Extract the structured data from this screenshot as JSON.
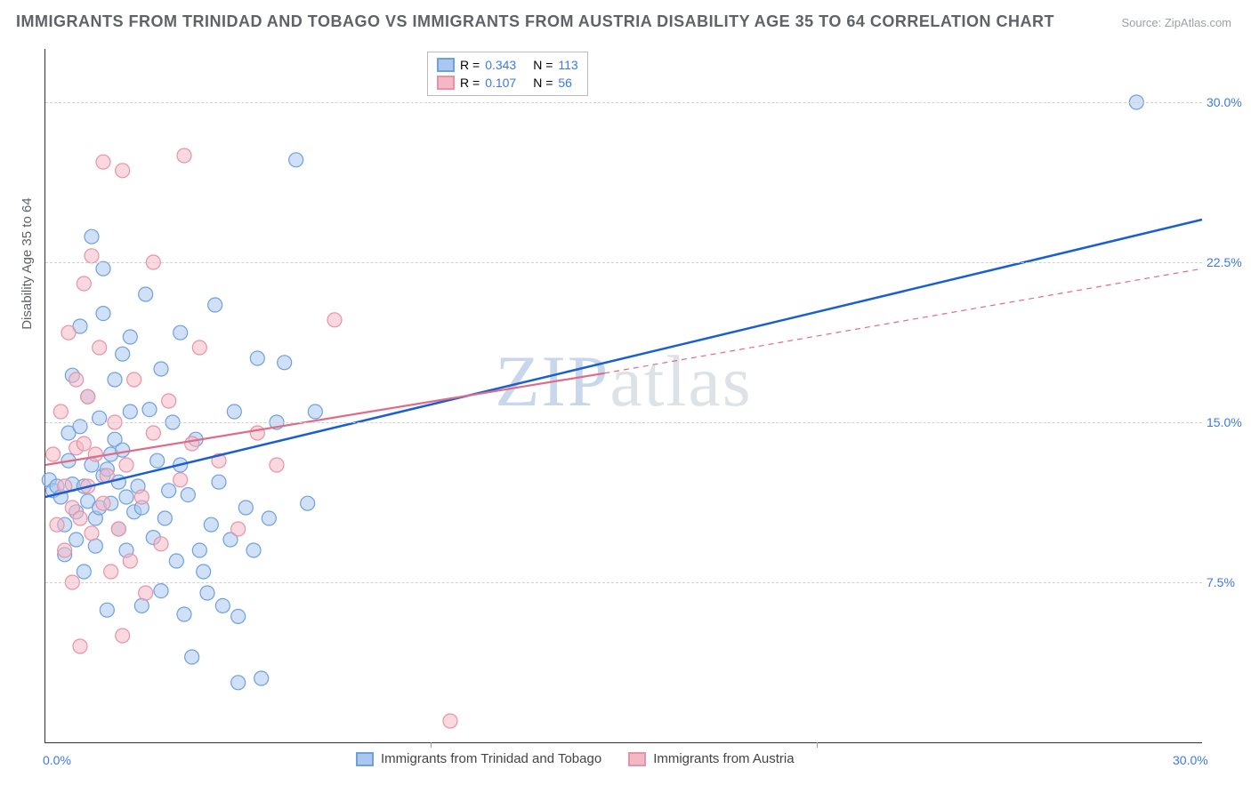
{
  "title": "IMMIGRANTS FROM TRINIDAD AND TOBAGO VS IMMIGRANTS FROM AUSTRIA DISABILITY AGE 35 TO 64 CORRELATION CHART",
  "source": "Source: ZipAtlas.com",
  "ylabel": "Disability Age 35 to 64",
  "watermark_a": "ZIP",
  "watermark_b": "atlas",
  "chart": {
    "type": "scatter",
    "xlim": [
      0,
      30
    ],
    "ylim": [
      0,
      32.5
    ],
    "ytick_labels": [
      "7.5%",
      "15.0%",
      "22.5%",
      "30.0%"
    ],
    "ytick_values": [
      7.5,
      15.0,
      22.5,
      30.0
    ],
    "xmin_label": "0.0%",
    "xmax_label": "30.0%",
    "grid_color": "#d0d0d0",
    "background_color": "#ffffff",
    "marker_radius": 8,
    "marker_opacity": 0.55,
    "series": [
      {
        "name": "Immigrants from Trinidad and Tobago",
        "color_fill": "#aac7ef",
        "color_stroke": "#6fa0de",
        "line_color": "#1a5fd0",
        "line_width": 2.5,
        "trend": {
          "x1": 0,
          "y1": 11.5,
          "x2": 30,
          "y2": 24.5,
          "dash": false
        },
        "R": "0.343",
        "N": "113",
        "points": [
          [
            0.1,
            12.3
          ],
          [
            0.2,
            11.8
          ],
          [
            0.3,
            12.0
          ],
          [
            0.4,
            11.5
          ],
          [
            0.5,
            8.8
          ],
          [
            0.5,
            10.2
          ],
          [
            0.6,
            13.2
          ],
          [
            0.6,
            14.5
          ],
          [
            0.7,
            12.1
          ],
          [
            0.7,
            17.2
          ],
          [
            0.8,
            9.5
          ],
          [
            0.8,
            10.8
          ],
          [
            0.9,
            14.8
          ],
          [
            0.9,
            19.5
          ],
          [
            1.0,
            12.0
          ],
          [
            1.0,
            8.0
          ],
          [
            1.1,
            11.3
          ],
          [
            1.1,
            16.2
          ],
          [
            1.2,
            13.0
          ],
          [
            1.2,
            23.7
          ],
          [
            1.3,
            9.2
          ],
          [
            1.3,
            10.5
          ],
          [
            1.4,
            11.0
          ],
          [
            1.4,
            15.2
          ],
          [
            1.5,
            12.5
          ],
          [
            1.5,
            20.1
          ],
          [
            1.6,
            12.8
          ],
          [
            1.6,
            6.2
          ],
          [
            1.7,
            11.2
          ],
          [
            1.7,
            13.5
          ],
          [
            1.8,
            14.2
          ],
          [
            1.8,
            17.0
          ],
          [
            1.9,
            12.2
          ],
          [
            1.9,
            10.0
          ],
          [
            2.0,
            13.7
          ],
          [
            2.0,
            18.2
          ],
          [
            2.1,
            11.5
          ],
          [
            2.1,
            9.0
          ],
          [
            2.2,
            15.5
          ],
          [
            2.2,
            19.0
          ],
          [
            2.3,
            10.8
          ],
          [
            2.4,
            12.0
          ],
          [
            2.5,
            6.4
          ],
          [
            2.5,
            11.0
          ],
          [
            2.7,
            15.6
          ],
          [
            2.8,
            9.6
          ],
          [
            2.9,
            13.2
          ],
          [
            3.0,
            17.5
          ],
          [
            3.0,
            7.1
          ],
          [
            3.1,
            10.5
          ],
          [
            3.2,
            11.8
          ],
          [
            3.3,
            15.0
          ],
          [
            3.4,
            8.5
          ],
          [
            3.5,
            13.0
          ],
          [
            3.6,
            6.0
          ],
          [
            3.7,
            11.6
          ],
          [
            3.8,
            4.0
          ],
          [
            3.9,
            14.2
          ],
          [
            4.0,
            9.0
          ],
          [
            4.1,
            8.0
          ],
          [
            4.2,
            7.0
          ],
          [
            4.3,
            10.2
          ],
          [
            4.5,
            12.2
          ],
          [
            4.6,
            6.4
          ],
          [
            4.8,
            9.5
          ],
          [
            5.0,
            2.8
          ],
          [
            5.0,
            5.9
          ],
          [
            5.2,
            11.0
          ],
          [
            5.4,
            9.0
          ],
          [
            5.6,
            3.0
          ],
          [
            5.8,
            10.5
          ],
          [
            6.0,
            15.0
          ],
          [
            6.2,
            17.8
          ],
          [
            6.5,
            27.3
          ],
          [
            4.9,
            15.5
          ],
          [
            5.5,
            18.0
          ],
          [
            4.4,
            20.5
          ],
          [
            3.5,
            19.2
          ],
          [
            2.6,
            21.0
          ],
          [
            1.5,
            22.2
          ],
          [
            6.8,
            11.2
          ],
          [
            7.0,
            15.5
          ],
          [
            28.3,
            30.0
          ]
        ]
      },
      {
        "name": "Immigrants from Austria",
        "color_fill": "#f4b8c4",
        "color_stroke": "#e793a5",
        "line_color": "#e06b87",
        "line_width": 2.2,
        "trend": {
          "x1": 0,
          "y1": 13.0,
          "x2": 14.5,
          "y2": 17.3,
          "dash": false
        },
        "trend_ext": {
          "x1": 14.5,
          "y1": 17.3,
          "x2": 30,
          "y2": 22.2,
          "dash": true
        },
        "R": "0.107",
        "N": "56",
        "points": [
          [
            0.2,
            13.5
          ],
          [
            0.3,
            10.2
          ],
          [
            0.4,
            15.5
          ],
          [
            0.5,
            9.0
          ],
          [
            0.5,
            12.0
          ],
          [
            0.6,
            19.2
          ],
          [
            0.7,
            7.5
          ],
          [
            0.7,
            11.0
          ],
          [
            0.8,
            13.8
          ],
          [
            0.8,
            17.0
          ],
          [
            0.9,
            10.5
          ],
          [
            0.9,
            4.5
          ],
          [
            1.0,
            14.0
          ],
          [
            1.0,
            21.5
          ],
          [
            1.1,
            16.2
          ],
          [
            1.1,
            12.0
          ],
          [
            1.2,
            22.8
          ],
          [
            1.2,
            9.8
          ],
          [
            1.3,
            13.5
          ],
          [
            1.4,
            18.5
          ],
          [
            1.5,
            11.2
          ],
          [
            1.5,
            27.2
          ],
          [
            1.6,
            12.5
          ],
          [
            1.7,
            8.0
          ],
          [
            1.8,
            15.0
          ],
          [
            1.9,
            10.0
          ],
          [
            2.0,
            26.8
          ],
          [
            2.0,
            5.0
          ],
          [
            2.1,
            13.0
          ],
          [
            2.2,
            8.5
          ],
          [
            2.3,
            17.0
          ],
          [
            2.5,
            11.5
          ],
          [
            2.6,
            7.0
          ],
          [
            2.8,
            14.5
          ],
          [
            2.8,
            22.5
          ],
          [
            3.0,
            9.3
          ],
          [
            3.2,
            16.0
          ],
          [
            3.5,
            12.3
          ],
          [
            3.6,
            27.5
          ],
          [
            3.8,
            14.0
          ],
          [
            4.0,
            18.5
          ],
          [
            4.5,
            13.2
          ],
          [
            5.0,
            10.0
          ],
          [
            5.5,
            14.5
          ],
          [
            6.0,
            13.0
          ],
          [
            7.5,
            19.8
          ],
          [
            10.5,
            1.0
          ]
        ]
      }
    ],
    "legend_top": {
      "r_label": "R =",
      "n_label": "N ="
    },
    "legend_bottom_labels": {
      "a": "Immigrants from Trinidad and Tobago",
      "b": "Immigrants from Austria"
    }
  }
}
